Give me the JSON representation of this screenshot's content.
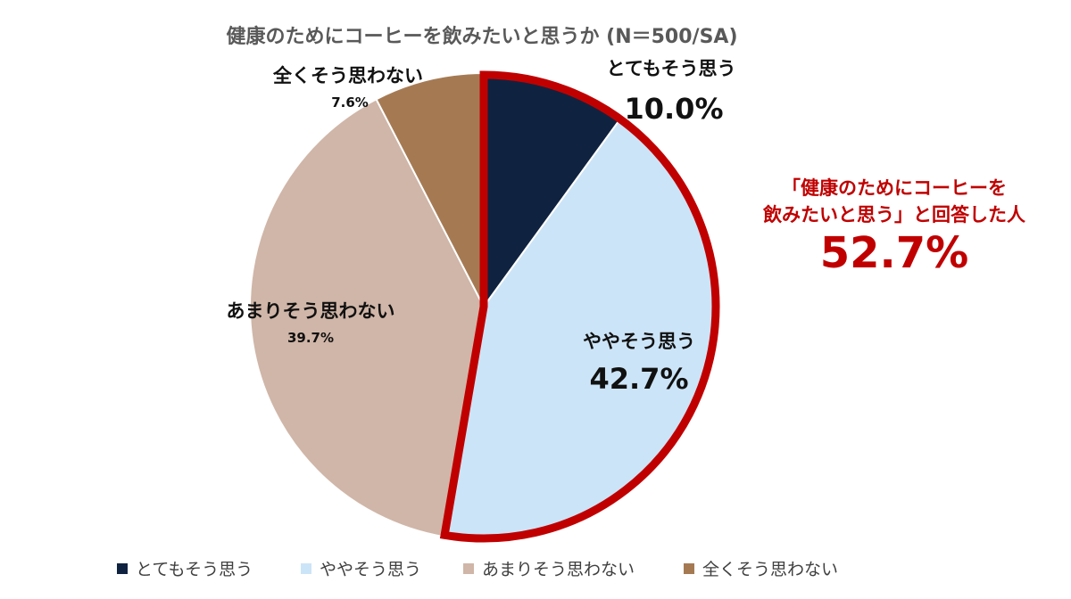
{
  "chart_data": {
    "type": "pie",
    "title": "健康のためにコーヒーを飲みたいと思うか (N＝500/SA)",
    "categories": [
      "とてもそう思う",
      "ややそう思う",
      "あまりそう思わない",
      "全くそう思わない"
    ],
    "values": [
      10.0,
      42.7,
      39.7,
      7.6
    ],
    "value_labels": [
      "10.0%",
      "42.7%",
      "39.7%",
      "7.6%"
    ],
    "colors": [
      "#0f2340",
      "#cce4f7",
      "#d0b6a8",
      "#a57a53"
    ],
    "legend_position": "bottom",
    "highlight": {
      "slices": [
        "とてもそう思う",
        "ややそう思う"
      ],
      "outline_color": "#c00000",
      "line1": "「健康のためにコーヒーを",
      "line2": "飲みたいと思う」と回答した人",
      "value": "52.7%"
    }
  }
}
